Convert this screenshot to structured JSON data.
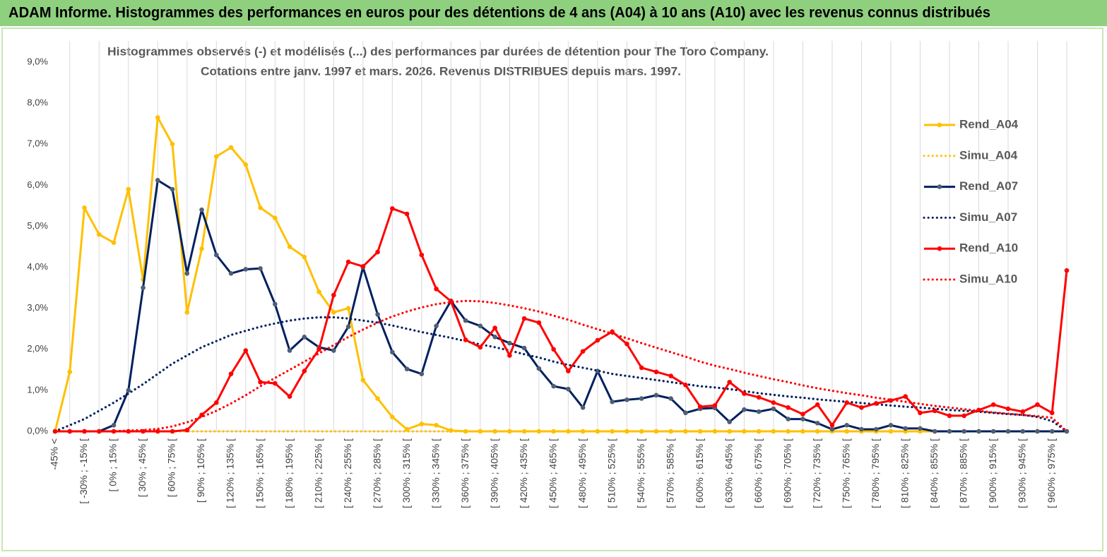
{
  "header": {
    "title": "ADAM Informe. Histogrammes des performances en euros pour des détentions de 4 ans (A04) à 10 ans (A10) avec les revenus connus distribués"
  },
  "chart_data": {
    "type": "line",
    "title": "Histogrammes observés (-) et modélisés (...) des performances par durées de détention pour The Toro Company.",
    "subtitle": "Cotations entre janv. 1997 et mars. 2026. Revenus DISTRIBUES depuis mars. 1997.",
    "categories": [
      "-45% <",
      null,
      "[ -30% ; -15% [",
      null,
      "[ 0% ; 15% [",
      null,
      "[ 30% ; 45% [",
      null,
      "[ 60% ; 75% [",
      null,
      "[ 90% ; 105% [",
      null,
      "[ 120% ; 135% [",
      null,
      "[ 150% ; 165% [",
      null,
      "[ 180% ; 195% [",
      null,
      "[ 210% ; 225% [",
      null,
      "[ 240% ; 255% [",
      null,
      "[ 270% ; 285% [",
      null,
      "[ 300% ; 315% [",
      null,
      "[ 330% ; 345% [",
      null,
      "[ 360% ; 375% [",
      null,
      "[ 390% ; 405% [",
      null,
      "[ 420% ; 435% [",
      null,
      "[ 450% ; 465% [",
      null,
      "[ 480% ; 495% [",
      null,
      "[ 510% ; 525% [",
      null,
      "[ 540% ; 555% [",
      null,
      "[ 570% ; 585% [",
      null,
      "[ 600% ; 615% [",
      null,
      "[ 630% ; 645% [",
      null,
      "[ 660% ; 675% [",
      null,
      "[ 690% ; 705% [",
      null,
      "[ 720% ; 735% [",
      null,
      "[ 750% ; 765% [",
      null,
      "[ 780% ; 795% [",
      null,
      "[ 810% ; 825% [",
      null,
      "[ 840% ; 855% [",
      null,
      "[ 870% ; 885% [",
      null,
      "[ 900% ; 915% [",
      null,
      "[ 930% ; 945% [",
      null,
      "[ 960% ; 975% [",
      null
    ],
    "series": [
      {
        "name": "Rend_A04",
        "color": "#ffc000",
        "style": "solid",
        "markers": true,
        "values": [
          0,
          1.45,
          5.45,
          4.8,
          4.6,
          5.9,
          3.7,
          7.65,
          7.0,
          2.9,
          4.45,
          6.7,
          6.92,
          6.5,
          5.45,
          5.2,
          4.5,
          4.25,
          3.4,
          2.9,
          3.0,
          1.25,
          0.8,
          0.35,
          0.05,
          0.18,
          0.15,
          0.02,
          0,
          0,
          0,
          0,
          0,
          0,
          0,
          0,
          0,
          0,
          0,
          0,
          0,
          0,
          0,
          0,
          0,
          0,
          0,
          0,
          0,
          0,
          0,
          0,
          0,
          0,
          0,
          0,
          0,
          0,
          0,
          0,
          0,
          0,
          0,
          0,
          0,
          0,
          0,
          0,
          0,
          0
        ]
      },
      {
        "name": "Simu_A04",
        "color": "#ffc000",
        "style": "dotted",
        "markers": false,
        "values": [
          0,
          0,
          0,
          0,
          0,
          0,
          0,
          0,
          0,
          0,
          0,
          0,
          0,
          0,
          0,
          0,
          0,
          0,
          0,
          0,
          0,
          0,
          0,
          0,
          0,
          0,
          0,
          0,
          0,
          0,
          0,
          0,
          0,
          0,
          0,
          0,
          0,
          0,
          0,
          0,
          0,
          0,
          0,
          0,
          0,
          0,
          0,
          0,
          0,
          0,
          0,
          0,
          0,
          0,
          0,
          0,
          0,
          0,
          0,
          0,
          0,
          0,
          0,
          0,
          0,
          0,
          0,
          0,
          0,
          0
        ]
      },
      {
        "name": "Rend_A07",
        "color": "#002060",
        "marker_color": "#4f5f73",
        "style": "solid",
        "markers": true,
        "values": [
          0,
          0,
          0,
          0,
          0.15,
          1.0,
          3.5,
          6.12,
          5.9,
          3.85,
          5.4,
          4.3,
          3.85,
          3.95,
          3.97,
          3.1,
          1.97,
          2.3,
          2.05,
          1.97,
          2.55,
          4.0,
          2.85,
          1.93,
          1.52,
          1.4,
          2.57,
          3.18,
          2.7,
          2.57,
          2.3,
          2.15,
          2.03,
          1.53,
          1.1,
          1.03,
          0.58,
          1.47,
          0.72,
          0.77,
          0.8,
          0.88,
          0.8,
          0.45,
          0.55,
          0.57,
          0.23,
          0.53,
          0.48,
          0.55,
          0.3,
          0.3,
          0.2,
          0.05,
          0.15,
          0.05,
          0.05,
          0.15,
          0.07,
          0.07,
          0,
          0,
          0,
          0,
          0,
          0,
          0,
          0,
          0,
          0
        ]
      },
      {
        "name": "Simu_A07",
        "color": "#002060",
        "style": "dotted",
        "markers": false,
        "values": [
          0,
          0.15,
          0.3,
          0.5,
          0.7,
          0.92,
          1.15,
          1.4,
          1.65,
          1.85,
          2.05,
          2.2,
          2.35,
          2.45,
          2.55,
          2.63,
          2.7,
          2.75,
          2.78,
          2.78,
          2.75,
          2.7,
          2.65,
          2.58,
          2.5,
          2.42,
          2.35,
          2.28,
          2.2,
          2.12,
          2.05,
          1.97,
          1.88,
          1.8,
          1.7,
          1.62,
          1.55,
          1.48,
          1.4,
          1.35,
          1.3,
          1.25,
          1.2,
          1.15,
          1.1,
          1.07,
          1.03,
          0.98,
          0.93,
          0.89,
          0.85,
          0.82,
          0.78,
          0.75,
          0.72,
          0.69,
          0.66,
          0.63,
          0.6,
          0.58,
          0.55,
          0.52,
          0.5,
          0.48,
          0.45,
          0.42,
          0.4,
          0.35,
          0.25,
          0
        ]
      },
      {
        "name": "Rend_A10",
        "color": "#ff0000",
        "style": "solid",
        "markers": true,
        "values": [
          0,
          0,
          0,
          0,
          0,
          0,
          0,
          0,
          0,
          0.03,
          0.4,
          0.7,
          1.4,
          1.97,
          1.2,
          1.17,
          0.85,
          1.47,
          2.0,
          3.32,
          4.13,
          4.02,
          4.37,
          5.43,
          5.3,
          4.3,
          3.47,
          3.17,
          2.23,
          2.05,
          2.52,
          1.85,
          2.75,
          2.65,
          2.0,
          1.47,
          1.95,
          2.22,
          2.43,
          2.13,
          1.55,
          1.45,
          1.35,
          1.13,
          0.6,
          0.63,
          1.2,
          0.92,
          0.83,
          0.7,
          0.58,
          0.42,
          0.65,
          0.15,
          0.7,
          0.58,
          0.68,
          0.75,
          0.85,
          0.45,
          0.5,
          0.38,
          0.38,
          0.52,
          0.65,
          0.55,
          0.48,
          0.65,
          0.45,
          3.92
        ]
      },
      {
        "name": "Simu_A10",
        "color": "#ff0000",
        "style": "dotted",
        "markers": false,
        "values": [
          0,
          0,
          0,
          0,
          0,
          0.02,
          0.03,
          0.06,
          0.12,
          0.22,
          0.35,
          0.5,
          0.68,
          0.88,
          1.1,
          1.3,
          1.5,
          1.7,
          1.9,
          2.1,
          2.3,
          2.48,
          2.65,
          2.8,
          2.92,
          3.02,
          3.1,
          3.15,
          3.18,
          3.17,
          3.13,
          3.07,
          3.0,
          2.92,
          2.82,
          2.72,
          2.6,
          2.49,
          2.38,
          2.27,
          2.15,
          2.04,
          1.93,
          1.82,
          1.7,
          1.6,
          1.52,
          1.43,
          1.35,
          1.27,
          1.2,
          1.12,
          1.05,
          0.99,
          0.93,
          0.88,
          0.82,
          0.77,
          0.72,
          0.67,
          0.62,
          0.58,
          0.54,
          0.5,
          0.46,
          0.43,
          0.4,
          0.37,
          0.33,
          0
        ]
      }
    ],
    "ylim": [
      0,
      9
    ],
    "yticks": [
      {
        "value": 0,
        "label": "0,0%"
      },
      {
        "value": 1,
        "label": "1,0%"
      },
      {
        "value": 2,
        "label": "2,0%"
      },
      {
        "value": 3,
        "label": "3,0%"
      },
      {
        "value": 4,
        "label": "4,0%"
      },
      {
        "value": 5,
        "label": "5,0%"
      },
      {
        "value": 6,
        "label": "6,0%"
      },
      {
        "value": 7,
        "label": "7,0%"
      },
      {
        "value": 8,
        "label": "8,0%"
      },
      {
        "value": 9,
        "label": "9,0%"
      }
    ],
    "xgrid": true,
    "grid": false,
    "legend": "right"
  }
}
